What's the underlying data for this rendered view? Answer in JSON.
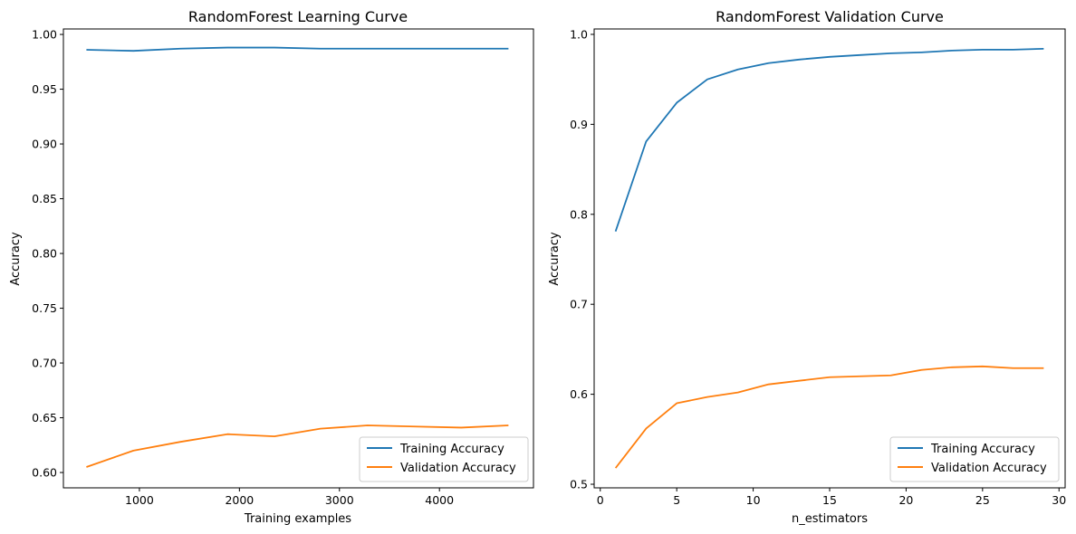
{
  "chart_data": [
    {
      "type": "line",
      "title": "RandomForest Learning Curve",
      "xlabel": "Training examples",
      "ylabel": "Accuracy",
      "xlim": [
        240,
        4940
      ],
      "ylim": [
        0.586,
        1.005
      ],
      "xticks": [
        1000,
        2000,
        3000,
        4000
      ],
      "xtick_labels": [
        "1000",
        "2000",
        "3000",
        "4000"
      ],
      "yticks": [
        0.6,
        0.65,
        0.7,
        0.75,
        0.8,
        0.85,
        0.9,
        0.95,
        1.0
      ],
      "ytick_labels": [
        "0.60",
        "0.65",
        "0.70",
        "0.75",
        "0.80",
        "0.85",
        "0.90",
        "0.95",
        "1.00"
      ],
      "x": [
        470,
        940,
        1410,
        1880,
        2350,
        2810,
        3280,
        3750,
        4220,
        4690
      ],
      "series": [
        {
          "name": "Training Accuracy",
          "color": "#1f77b4",
          "values": [
            0.986,
            0.985,
            0.987,
            0.988,
            0.988,
            0.987,
            0.987,
            0.987,
            0.987,
            0.987
          ]
        },
        {
          "name": "Validation Accuracy",
          "color": "#ff7f0e",
          "values": [
            0.605,
            0.62,
            0.628,
            0.635,
            0.633,
            0.64,
            0.643,
            0.642,
            0.641,
            0.643
          ]
        }
      ],
      "legend": "lower-right",
      "grid": false
    },
    {
      "type": "line",
      "title": "RandomForest Validation Curve",
      "xlabel": "n_estimators",
      "ylabel": "Accuracy",
      "xlim": [
        -0.4,
        30.4
      ],
      "ylim": [
        0.496,
        1.006
      ],
      "xticks": [
        0,
        5,
        10,
        15,
        20,
        25,
        30
      ],
      "xtick_labels": [
        "0",
        "5",
        "10",
        "15",
        "20",
        "25",
        "30"
      ],
      "yticks": [
        0.5,
        0.6,
        0.7,
        0.8,
        0.9,
        1.0
      ],
      "ytick_labels": [
        "0.5",
        "0.6",
        "0.7",
        "0.8",
        "0.9",
        "1.0"
      ],
      "x": [
        1,
        3,
        5,
        7,
        9,
        11,
        13,
        15,
        17,
        19,
        21,
        23,
        25,
        27,
        29
      ],
      "series": [
        {
          "name": "Training Accuracy",
          "color": "#1f77b4",
          "values": [
            0.781,
            0.881,
            0.924,
            0.95,
            0.961,
            0.968,
            0.972,
            0.975,
            0.977,
            0.979,
            0.98,
            0.982,
            0.983,
            0.983,
            0.984
          ]
        },
        {
          "name": "Validation Accuracy",
          "color": "#ff7f0e",
          "values": [
            0.518,
            0.562,
            0.59,
            0.597,
            0.602,
            0.611,
            0.615,
            0.619,
            0.62,
            0.621,
            0.627,
            0.63,
            0.631,
            0.629,
            0.629
          ]
        }
      ],
      "legend": "lower-right",
      "grid": false
    }
  ]
}
